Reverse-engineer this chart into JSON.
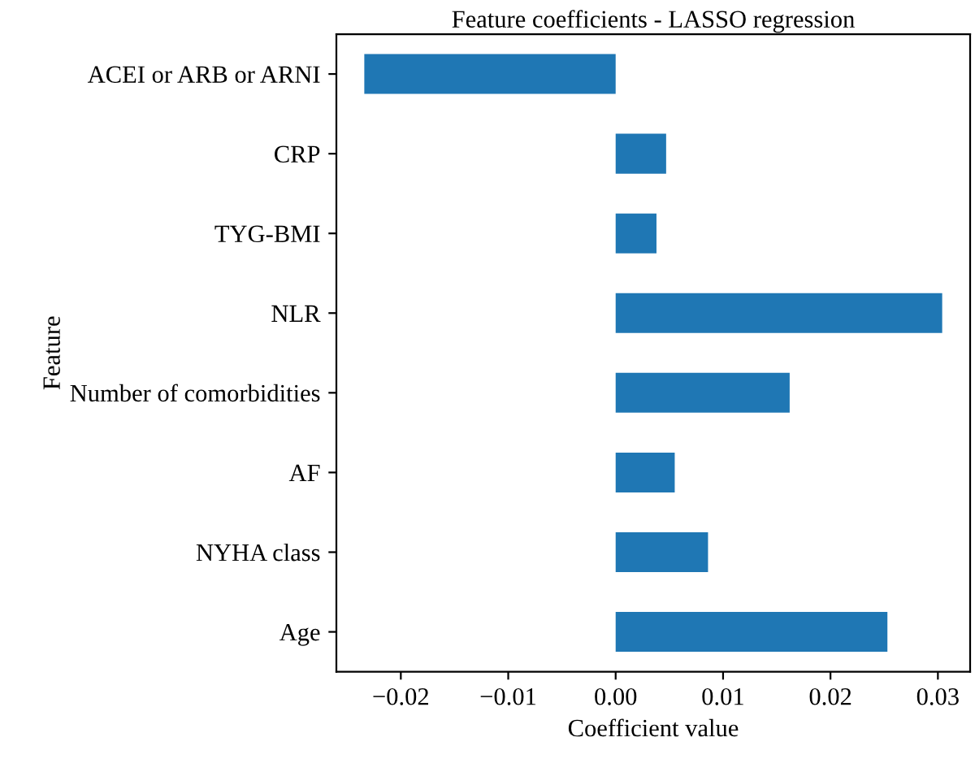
{
  "chart_data": {
    "type": "bar",
    "orientation": "horizontal",
    "title": "Feature coefficients - LASSO regression",
    "xlabel": "Coefficient value",
    "ylabel": "Feature",
    "categories": [
      "ACEI or ARB or ARNI",
      "CRP",
      "TYG-BMI",
      "NLR",
      "Number of comorbidities",
      "AF",
      "NYHA class",
      "Age"
    ],
    "values": [
      -0.0234,
      0.0047,
      0.0038,
      0.0304,
      0.0162,
      0.0055,
      0.0086,
      0.0253
    ],
    "color": "#1f77b4",
    "xlim": [
      -0.026,
      0.033
    ],
    "xticks": [
      {
        "value": -0.02,
        "label": "−0.02"
      },
      {
        "value": -0.01,
        "label": "−0.01"
      },
      {
        "value": 0,
        "label": "0.00"
      },
      {
        "value": 0.01,
        "label": "0.01"
      },
      {
        "value": 0.02,
        "label": "0.02"
      },
      {
        "value": 0.03,
        "label": "0.03"
      }
    ],
    "grid": false,
    "legend": false
  }
}
